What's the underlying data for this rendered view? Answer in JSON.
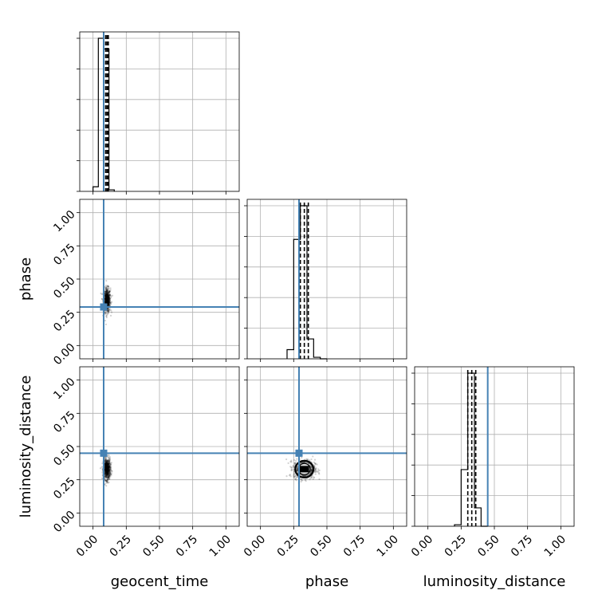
{
  "chart_data": {
    "type": "corner",
    "parameters": [
      "geocent_time",
      "phase",
      "luminosity_distance"
    ],
    "axis_range": [
      -0.1,
      1.1
    ],
    "ticks": [
      0.0,
      0.25,
      0.5,
      0.75,
      1.0
    ],
    "tick_labels": [
      "0.00",
      "0.25",
      "0.50",
      "0.75",
      "1.00"
    ],
    "truth_values": {
      "geocent_time": 0.08,
      "phase": 0.29,
      "luminosity_distance": 0.45
    },
    "truth_color": "#4682b4",
    "grid": true,
    "histograms": {
      "geocent_time": {
        "bin_edges": [
          0.0,
          0.04,
          0.08,
          0.12,
          0.16
        ],
        "heights": [
          0.03,
          1.0,
          0.93,
          0.01
        ],
        "quantiles": [
          0.095,
          0.105,
          0.115
        ]
      },
      "phase": {
        "bin_edges": [
          0.2,
          0.25,
          0.3,
          0.35,
          0.4,
          0.45,
          0.5
        ],
        "heights": [
          0.06,
          0.78,
          1.0,
          0.13,
          0.01,
          0.0
        ],
        "quantiles": [
          0.3,
          0.33,
          0.36
        ]
      },
      "luminosity_distance": {
        "bin_edges": [
          0.2,
          0.25,
          0.3,
          0.35,
          0.4,
          0.45
        ],
        "heights": [
          0.01,
          0.37,
          1.0,
          0.12,
          0.0
        ],
        "quantiles": [
          0.3,
          0.33,
          0.36
        ]
      }
    },
    "scatter": {
      "phase_vs_geocent_time": {
        "x_center": 0.105,
        "y_center": 0.34,
        "x_spread": 0.013,
        "y_spread": 0.045
      },
      "luminosity_distance_vs_geocent_time": {
        "x_center": 0.105,
        "y_center": 0.33,
        "x_spread": 0.013,
        "y_spread": 0.04
      },
      "luminosity_distance_vs_phase": {
        "x_center": 0.33,
        "y_center": 0.33,
        "x_spread": 0.04,
        "y_spread": 0.035
      }
    }
  }
}
